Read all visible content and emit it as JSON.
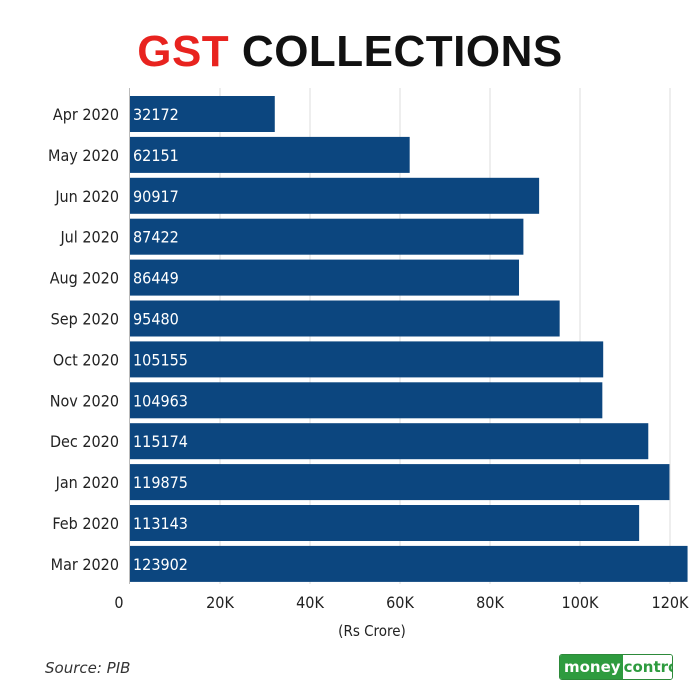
{
  "header": {
    "title_accent": "GST",
    "title_rest": "COLLECTIONS"
  },
  "footer": {
    "source": "Source: PIB",
    "logo_part1": "money",
    "logo_part2": "control"
  },
  "colors": {
    "bar": "#0c467f",
    "accent": "#e8231f",
    "grid": "#dddddd",
    "logo_green": "#2e9b3f"
  },
  "chart_data": {
    "type": "bar",
    "orientation": "horizontal",
    "title": "GST COLLECTIONS",
    "xlabel": "(Rs Crore)",
    "ylabel": "",
    "categories": [
      "Apr 2020",
      "May 2020",
      "Jun 2020",
      "Jul 2020",
      "Aug 2020",
      "Sep 2020",
      "Oct 2020",
      "Nov 2020",
      "Dec 2020",
      "Jan 2020",
      "Feb 2020",
      "Mar 2020"
    ],
    "values": [
      32172,
      62151,
      90917,
      87422,
      86449,
      95480,
      105155,
      104963,
      115174,
      119875,
      113143,
      123902
    ],
    "value_labels": [
      "32172",
      "62151",
      "90917",
      "87422",
      "86449",
      "95480",
      "105155",
      "104963",
      "115174",
      "119875",
      "113143",
      "123902"
    ],
    "xlim": [
      0,
      130000
    ],
    "xticks": [
      0,
      20000,
      40000,
      60000,
      80000,
      100000,
      120000
    ],
    "xtick_labels": [
      "0",
      "20K",
      "40K",
      "60K",
      "80K",
      "100K",
      "120K"
    ],
    "grid": true,
    "legend": "none"
  }
}
